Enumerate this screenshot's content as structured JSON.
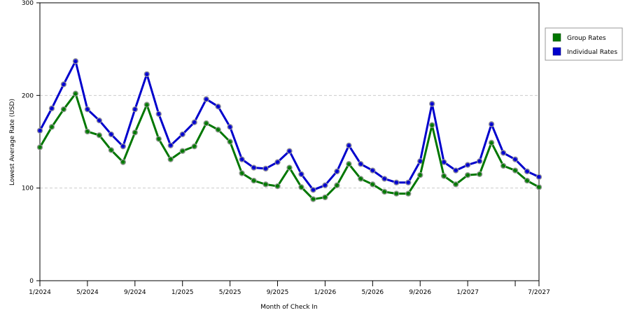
{
  "chart_data": {
    "type": "line",
    "xlabel": "Month of Check In",
    "ylabel": "Lowest Average Rate (USD)",
    "ylim": [
      0,
      300
    ],
    "yticks": [
      0,
      100,
      200,
      300
    ],
    "grid": "horizontal dashed at 100 and 200",
    "legend_position": "top-right",
    "x": [
      "1/2024",
      "2/2024",
      "3/2024",
      "4/2024",
      "5/2024",
      "6/2024",
      "7/2024",
      "8/2024",
      "9/2024",
      "10/2024",
      "11/2024",
      "12/2024",
      "1/2025",
      "2/2025",
      "3/2025",
      "4/2025",
      "5/2025",
      "6/2025",
      "7/2025",
      "8/2025",
      "9/2025",
      "10/2025",
      "11/2025",
      "12/2025",
      "1/2026",
      "2/2026",
      "3/2026",
      "4/2026",
      "5/2026",
      "6/2026",
      "7/2026",
      "8/2026",
      "9/2026",
      "10/2026",
      "11/2026",
      "12/2026",
      "1/2027",
      "2/2027",
      "3/2027",
      "4/2027",
      "5/2027",
      "6/2027",
      "7/2027"
    ],
    "x_tick_labels": [
      {
        "index": 0,
        "label": "1/2024"
      },
      {
        "index": 4,
        "label": "5/2024"
      },
      {
        "index": 8,
        "label": "9/2024"
      },
      {
        "index": 12,
        "label": "1/2025"
      },
      {
        "index": 16,
        "label": "5/2025"
      },
      {
        "index": 20,
        "label": "9/2025"
      },
      {
        "index": 24,
        "label": "1/2026"
      },
      {
        "index": 28,
        "label": "5/2026"
      },
      {
        "index": 32,
        "label": "9/2026"
      },
      {
        "index": 36,
        "label": "1/2027"
      },
      {
        "index": 40,
        "label": ""
      },
      {
        "index": 42,
        "label": "7/2027"
      }
    ],
    "series": [
      {
        "name": "Individual Rates",
        "color": "#0000cc",
        "values": [
          162,
          186,
          212,
          237,
          185,
          173,
          158,
          145,
          185,
          223,
          180,
          146,
          158,
          171,
          196,
          188,
          166,
          131,
          122,
          121,
          128,
          140,
          115,
          98,
          103,
          118,
          146,
          126,
          119,
          110,
          106,
          106,
          129,
          191,
          128,
          119,
          125,
          129,
          169,
          138,
          131,
          118,
          112
        ]
      },
      {
        "name": "Group Rates",
        "color": "#007700",
        "values": [
          144,
          166,
          185,
          202,
          161,
          157,
          141,
          128,
          160,
          190,
          153,
          131,
          140,
          145,
          170,
          163,
          150,
          116,
          108,
          104,
          102,
          122,
          101,
          88,
          90,
          103,
          126,
          110,
          104,
          96,
          94,
          94,
          114,
          168,
          113,
          104,
          114,
          115,
          149,
          124,
          119,
          108,
          101
        ]
      }
    ]
  }
}
